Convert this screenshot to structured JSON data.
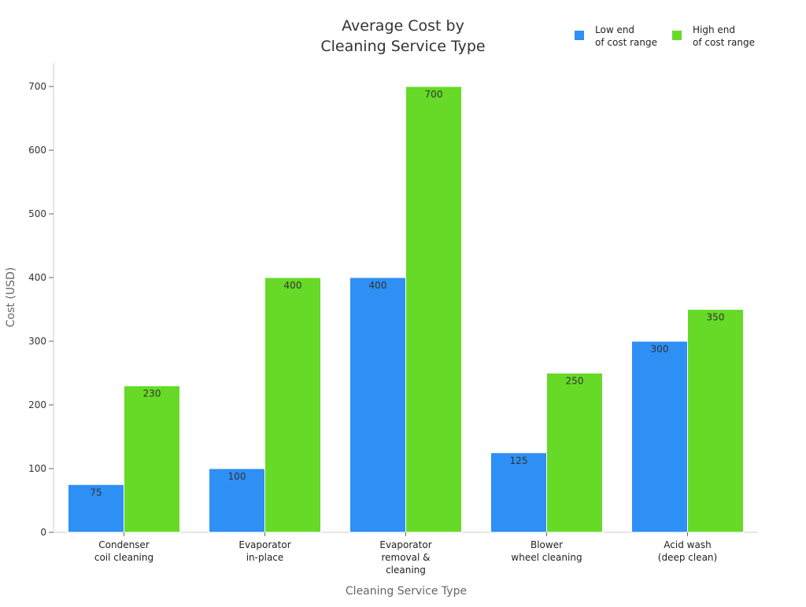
{
  "chart_data": {
    "type": "bar",
    "title_lines": [
      "Average Cost by",
      "Cleaning Service Type"
    ],
    "xlabel": "Cleaning Service Type",
    "ylabel": "Cost (USD)",
    "ylim": [
      0,
      700
    ],
    "yticks": [
      0,
      100,
      200,
      300,
      400,
      500,
      600,
      700
    ],
    "grid": false,
    "legend_position": "top-right",
    "categories": [
      [
        "Condenser",
        "coil cleaning"
      ],
      [
        "Evaporator",
        "in-place"
      ],
      [
        "Evaporator",
        "removal &",
        "cleaning"
      ],
      [
        "Blower",
        "wheel cleaning"
      ],
      [
        "Acid wash",
        "(deep clean)"
      ]
    ],
    "series": [
      {
        "name_lines": [
          "Low end",
          "of cost range"
        ],
        "color": "#2e8ff5",
        "values": [
          75,
          100,
          400,
          125,
          300
        ]
      },
      {
        "name_lines": [
          "High end",
          "of cost range"
        ],
        "color": "#66da26",
        "values": [
          230,
          400,
          700,
          250,
          350
        ]
      }
    ]
  }
}
